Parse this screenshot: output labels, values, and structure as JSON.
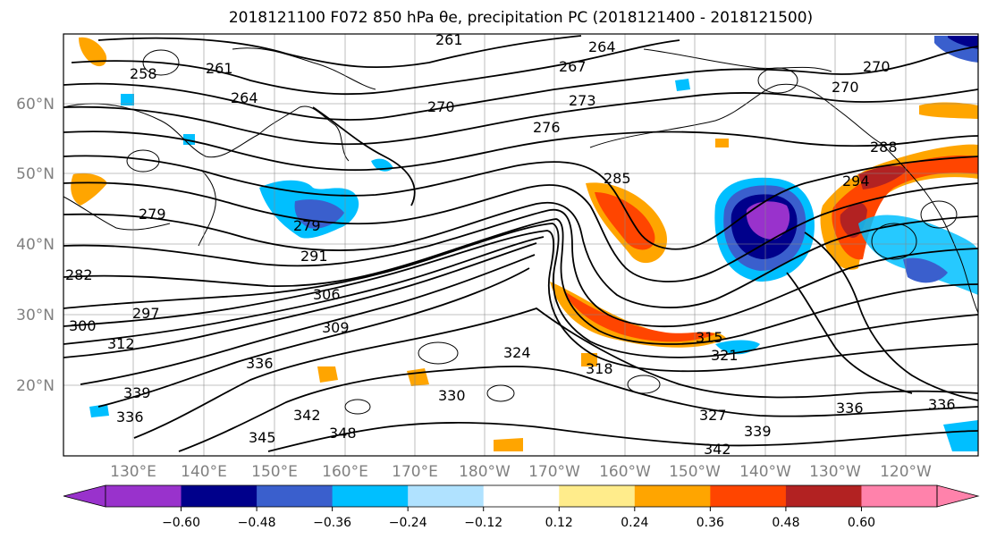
{
  "title": "2018121100 F072 850 hPa θe, precipitation PC (2018121400 - 2018121500)",
  "map": {
    "lat_labels": [
      "60°N",
      "50°N",
      "40°N",
      "30°N",
      "20°N"
    ],
    "lon_labels": [
      "130°E",
      "140°E",
      "150°E",
      "160°E",
      "170°E",
      "180°W",
      "170°W",
      "160°W",
      "150°W",
      "140°W",
      "130°W",
      "120°W"
    ],
    "contour_labels": [
      "261",
      "264",
      "258",
      "261",
      "264",
      "267",
      "270",
      "270",
      "273",
      "276",
      "279",
      "282",
      "285",
      "288",
      "291",
      "294",
      "297",
      "300",
      "306",
      "309",
      "312",
      "315",
      "318",
      "321",
      "324",
      "327",
      "330",
      "336",
      "339",
      "339",
      "342",
      "342",
      "345",
      "348",
      "336",
      "336",
      "336",
      "270",
      "279"
    ]
  },
  "colorbar": {
    "colors": [
      "#9932cc",
      "#00008b",
      "#3a5fcd",
      "#00bfff",
      "#b0e2ff",
      "#ffffff",
      "#ffec8b",
      "#ffa500",
      "#ff4500",
      "#b22222",
      "#ff82ab"
    ],
    "tick_labels": [
      "−0.60",
      "−0.48",
      "−0.36",
      "−0.24",
      "−0.12",
      "0.12",
      "0.24",
      "0.36",
      "0.48",
      "0.60"
    ]
  }
}
